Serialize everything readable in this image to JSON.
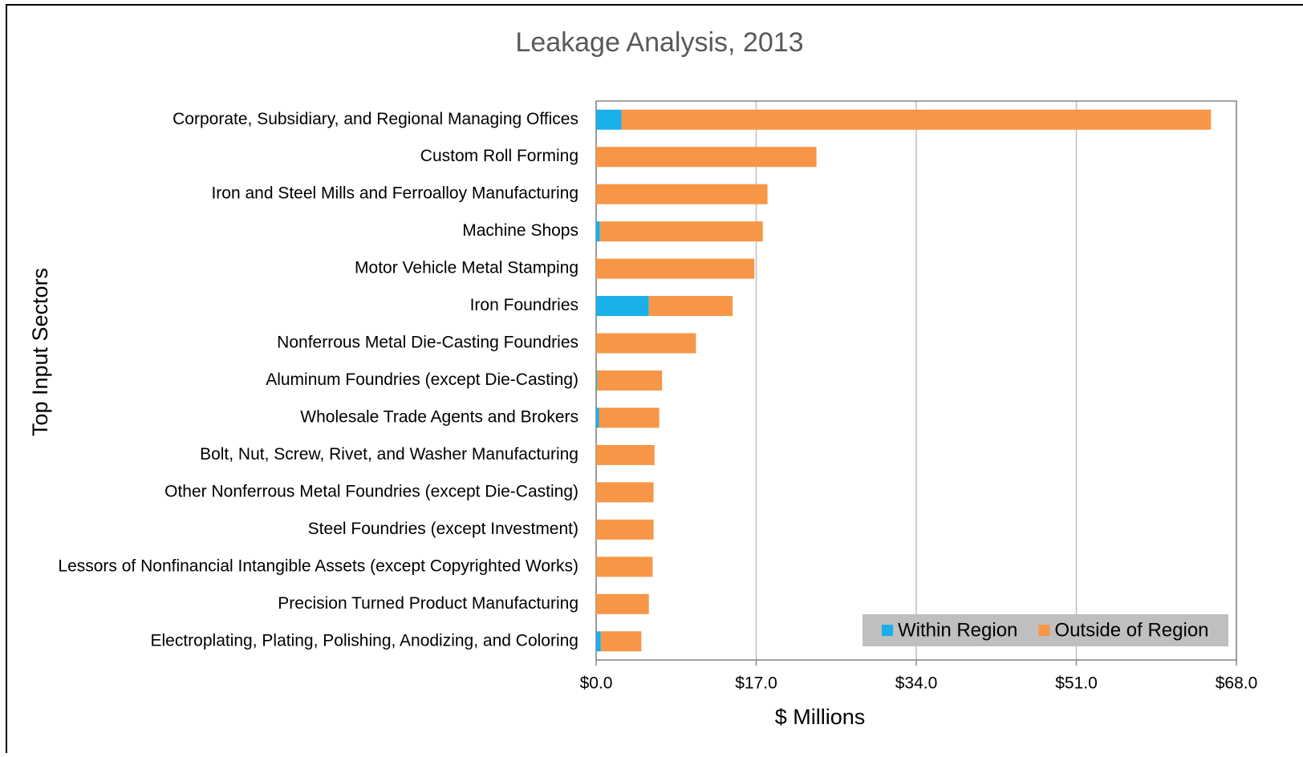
{
  "chart_data": {
    "type": "stacked-bar-horizontal",
    "title": "Leakage Analysis, 2013",
    "xlabel": "$ Millions",
    "ylabel": "Top Input Sectors",
    "categories": [
      "Corporate, Subsidiary, and Regional Managing Offices",
      "Custom Roll Forming",
      "Iron and Steel Mills and Ferroalloy Manufacturing",
      "Machine Shops",
      "Motor Vehicle Metal Stamping",
      "Iron Foundries",
      "Nonferrous Metal Die-Casting Foundries",
      "Aluminum Foundries (except Die-Casting)",
      "Wholesale Trade Agents and Brokers",
      "Bolt, Nut, Screw, Rivet, and Washer Manufacturing",
      "Other Nonferrous Metal Foundries (except Die-Casting)",
      "Steel Foundries (except Investment)",
      "Lessors of Nonfinancial Intangible Assets (except Copyrighted Works)",
      "Precision Turned Product Manufacturing",
      "Electroplating, Plating, Polishing, Anodizing, and Coloring"
    ],
    "series": [
      {
        "name": "Within Region",
        "color": "#19afe9",
        "values": [
          2.7,
          0,
          0,
          0.4,
          0,
          5.6,
          0,
          0.1,
          0.3,
          0,
          0,
          0,
          0,
          0,
          0.5
        ]
      },
      {
        "name": "Outside of Region",
        "color": "#f79646",
        "values": [
          62.6,
          23.4,
          18.2,
          17.3,
          16.8,
          8.9,
          10.6,
          6.9,
          6.4,
          6.2,
          6.1,
          6.1,
          6.0,
          5.6,
          4.3
        ]
      }
    ],
    "xlim": [
      0,
      68
    ],
    "xticks": [
      {
        "value": 0,
        "label": "$0.0"
      },
      {
        "value": 17,
        "label": "$17.0"
      },
      {
        "value": 34,
        "label": "$34.0"
      },
      {
        "value": 51,
        "label": "$51.0"
      },
      {
        "value": 68,
        "label": "$68.0"
      }
    ],
    "grid": true,
    "legend": "lower right"
  }
}
